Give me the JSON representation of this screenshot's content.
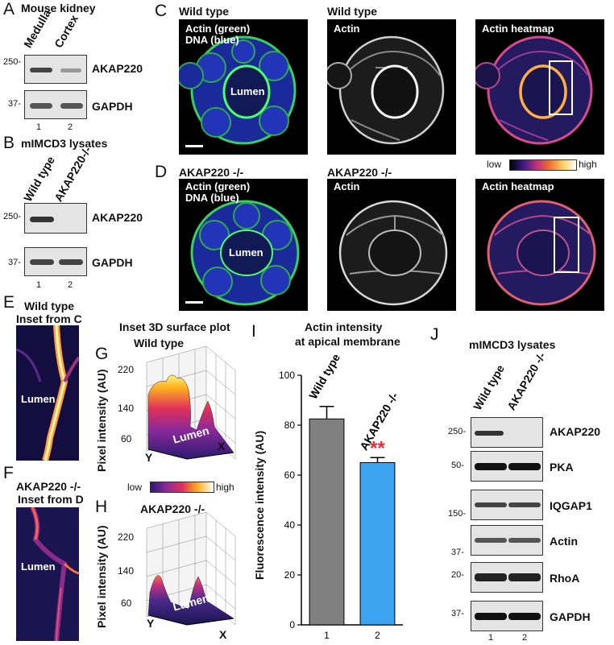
{
  "panel_letters": {
    "A": "A",
    "B": "B",
    "C": "C",
    "D": "D",
    "E": "E",
    "F": "F",
    "G": "G",
    "H": "H",
    "I": "I",
    "J": "J"
  },
  "panel_A": {
    "title": "Mouse kidney",
    "lanes": [
      "Medulla",
      "Cortex"
    ],
    "lane_nums": [
      "1",
      "2"
    ],
    "rows": [
      {
        "mw": "250-",
        "label": "AKAP220"
      },
      {
        "mw": "37-",
        "label": "GAPDH"
      }
    ]
  },
  "panel_B": {
    "title": "mIMCD3 lysates",
    "lanes": [
      "Wild type",
      "AKAP220-/-"
    ],
    "lane_nums": [
      "1",
      "2"
    ],
    "rows": [
      {
        "mw": "250-",
        "label": "AKAP220"
      },
      {
        "mw": "37-",
        "label": "GAPDH"
      }
    ]
  },
  "panel_C": {
    "titles": [
      "Wild type",
      "Wild type"
    ],
    "image_labels": [
      "Actin (green)",
      "DNA (blue)",
      "Actin",
      "Actin heatmap"
    ],
    "lumen": "Lumen"
  },
  "heat_legend": {
    "low": "low",
    "high": "high"
  },
  "panel_D": {
    "titles": [
      "AKAP220 -/-",
      "AKAP220 -/-"
    ],
    "image_labels": [
      "Actin (green)",
      "DNA (blue)",
      "Actin",
      "Actin heatmap"
    ],
    "lumen": "Lumen"
  },
  "panel_E": {
    "title1": "Wild type",
    "title2": "Inset from C",
    "lumen": "Lumen"
  },
  "panel_F": {
    "title1": "AKAP220 -/-",
    "title2": "Inset from D",
    "lumen": "Lumen"
  },
  "panel_G": {
    "title": "Inset 3D surface plot",
    "subtitle": "Wild type",
    "ylabel": "Pixel intensity (AU)",
    "yticks": [
      "220",
      "140",
      "60"
    ],
    "x_axis": "X",
    "y_axis": "Y",
    "lumen": "Lumen"
  },
  "panel_H": {
    "title": "AKAP220 -/-",
    "ylabel": "Pixel intensity (AU)",
    "yticks": [
      "220",
      "140",
      "60"
    ],
    "x_axis": "X",
    "y_axis": "Y",
    "lumen": "Lumen"
  },
  "legend_GH": {
    "low": "low",
    "high": "high"
  },
  "panel_I": {
    "title1": "Actin intensity",
    "title2": "at apical membrane",
    "significance": "**"
  },
  "chart_data": {
    "type": "bar",
    "title": "Actin intensity at apical membrane",
    "xlabel": "",
    "ylabel": "Fluorescence intensity (AU)",
    "categories": [
      "1",
      "2"
    ],
    "category_labels": [
      "Wild type",
      "AKAP220 -/-"
    ],
    "values": [
      82.5,
      65
    ],
    "errors": [
      5,
      2
    ],
    "colors": [
      "#808080",
      "#3ba3f0"
    ],
    "ylim": [
      0,
      100
    ],
    "yticks": [
      0,
      20,
      40,
      60,
      80,
      100
    ],
    "grid": false
  },
  "panel_J": {
    "title": "mIMCD3 lysates",
    "lanes": [
      "Wild type",
      "AKAP220 -/-"
    ],
    "lane_nums": [
      "1",
      "2"
    ],
    "rows": [
      {
        "mw": "250-",
        "label": "AKAP220"
      },
      {
        "mw": "50-",
        "label": "PKA"
      },
      {
        "mw": "150-",
        "label": "IQGAP1"
      },
      {
        "mw": "37-",
        "label": "Actin"
      },
      {
        "mw": "20-",
        "label": "RhoA"
      },
      {
        "mw": "37-",
        "label": "GAPDH"
      }
    ]
  }
}
